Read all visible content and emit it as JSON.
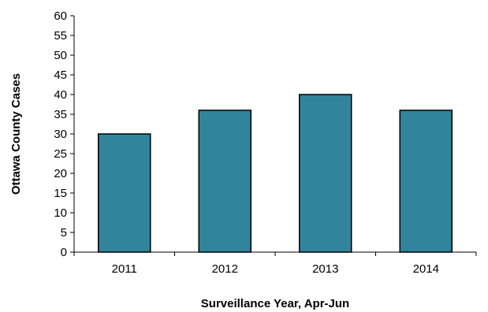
{
  "chart_data": {
    "type": "bar",
    "categories": [
      "2011",
      "2012",
      "2013",
      "2014"
    ],
    "values": [
      30,
      36,
      40,
      36
    ],
    "xlabel": "Surveillance Year, Apr-Jun",
    "ylabel": "Ottawa County Cases",
    "ylim": [
      0,
      60
    ],
    "yticks": [
      0,
      5,
      10,
      15,
      20,
      25,
      30,
      35,
      40,
      45,
      50,
      55,
      60
    ],
    "grid": false,
    "legend": "none",
    "colors": {
      "bar_fill": "#31849B",
      "bar_stroke": "#000000",
      "axis": "#000000"
    }
  }
}
